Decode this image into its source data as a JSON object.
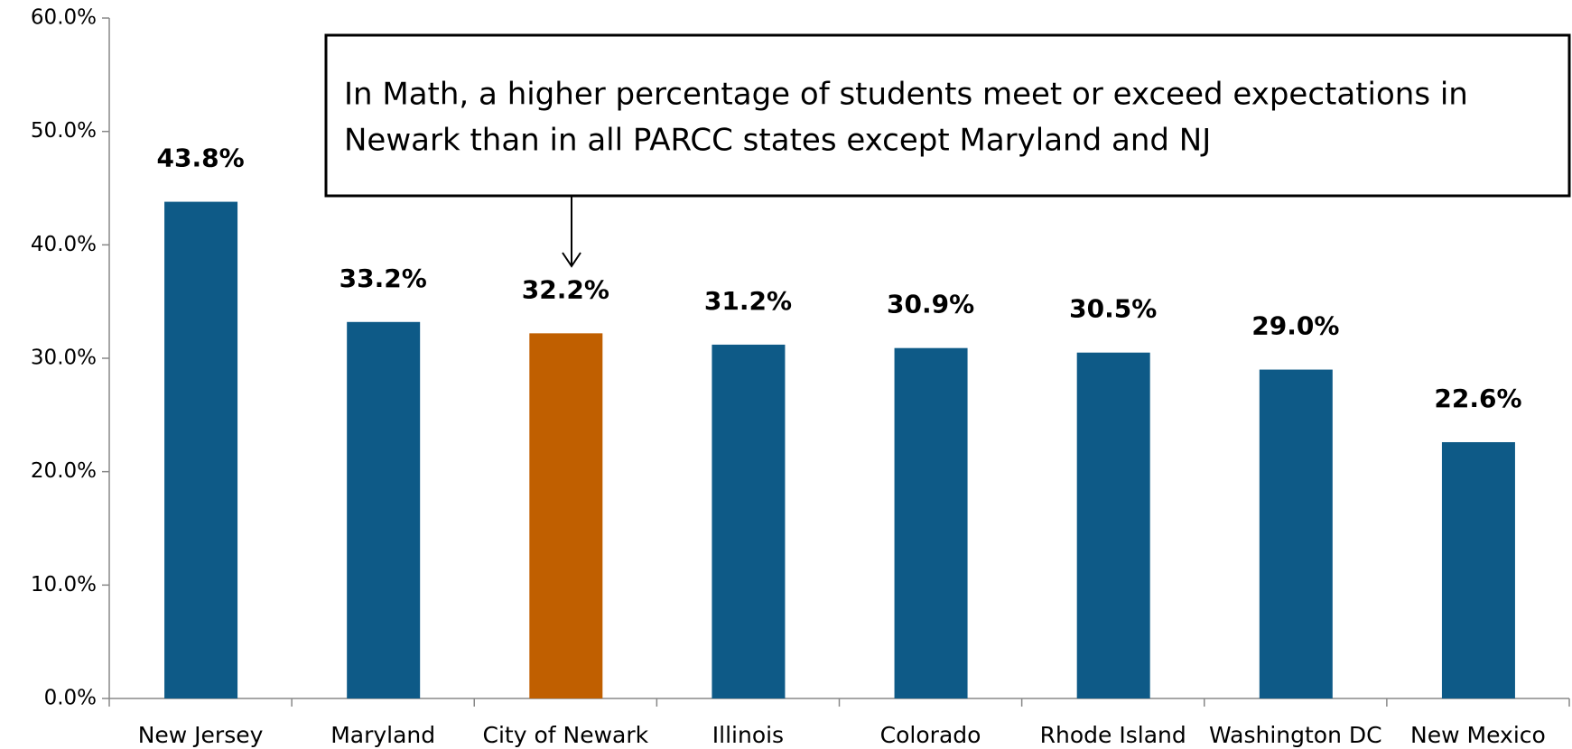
{
  "chart_data": {
    "type": "bar",
    "categories": [
      "New Jersey",
      "Maryland",
      "City of Newark",
      "Illinois",
      "Colorado",
      "Rhode Island",
      "Washington DC",
      "New Mexico"
    ],
    "values": [
      43.8,
      33.2,
      32.2,
      31.2,
      30.9,
      30.5,
      29.0,
      22.6
    ],
    "value_labels": [
      "43.8%",
      "33.2%",
      "32.2%",
      "31.2%",
      "30.9%",
      "30.5%",
      "29.0%",
      "22.6%"
    ],
    "colors": [
      "#0e5a87",
      "#0e5a87",
      "#c05f00",
      "#0e5a87",
      "#0e5a87",
      "#0e5a87",
      "#0e5a87",
      "#0e5a87"
    ],
    "ylim": [
      0,
      60
    ],
    "yticks": [
      {
        "value": 0,
        "label": "0.0%"
      },
      {
        "value": 10,
        "label": "10.0%"
      },
      {
        "value": 20,
        "label": "20.0%"
      },
      {
        "value": 30,
        "label": "30.0%"
      },
      {
        "value": 40,
        "label": "40.0%"
      },
      {
        "value": 50,
        "label": "50.0%"
      },
      {
        "value": 60,
        "label": "60.0%"
      }
    ],
    "grid": false,
    "annotation": [
      "In Math, a higher percentage of students meet or exceed expectations in",
      "Newark than in all PARCC states except Maryland and NJ"
    ]
  }
}
